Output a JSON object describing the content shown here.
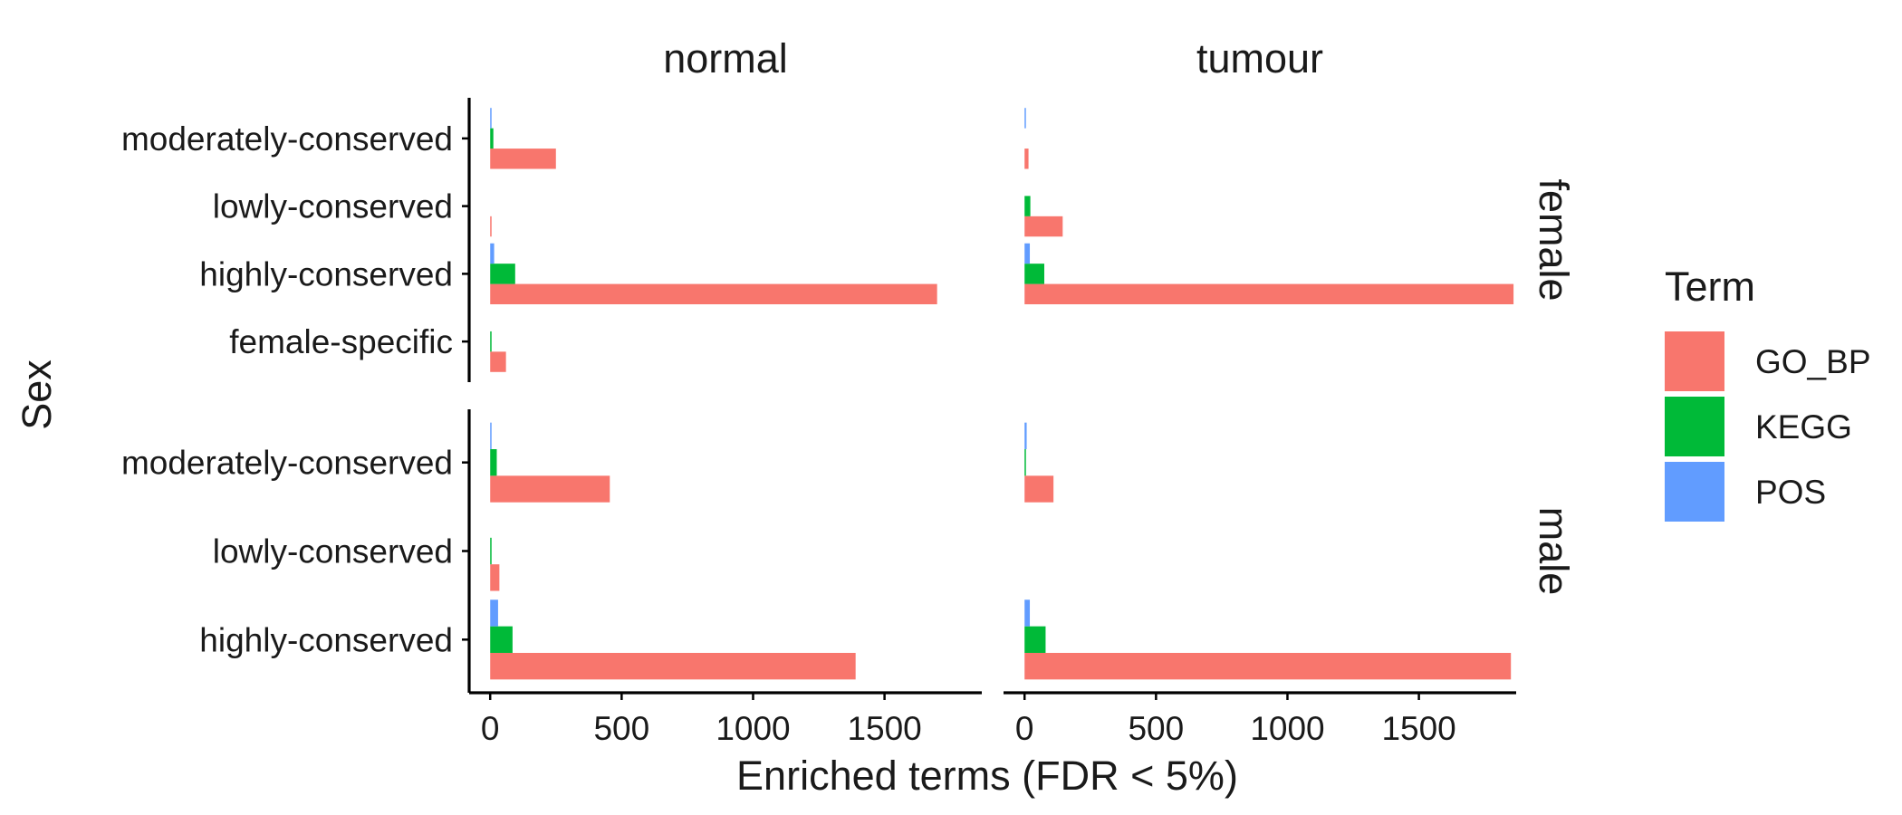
{
  "chart_data": {
    "type": "bar",
    "orientation": "horizontal",
    "grid": false,
    "legend_position": "right",
    "xlabel": "Enriched terms (FDR < 5%)",
    "ylabel": "Sex",
    "xlim": [
      -80,
      1870
    ],
    "xticks": [
      0,
      500,
      1000,
      1500
    ],
    "column_facets": [
      "normal",
      "tumour"
    ],
    "row_facets": [
      {
        "name": "female",
        "categories": [
          "moderately-conserved",
          "lowly-conserved",
          "highly-conserved",
          "female-specific"
        ]
      },
      {
        "name": "male",
        "categories": [
          "moderately-conserved",
          "lowly-conserved",
          "highly-conserved"
        ]
      }
    ],
    "legend": {
      "title": "Term",
      "entries": [
        {
          "name": "GO_BP",
          "color": "#F8766D"
        },
        {
          "name": "KEGG",
          "color": "#00BA38"
        },
        {
          "name": "POS",
          "color": "#619CFF"
        }
      ]
    },
    "series": [
      {
        "name": "GO_BP",
        "color": "#F8766D",
        "values": {
          "normal": {
            "female": {
              "moderately-conserved": 250,
              "lowly-conserved": 2,
              "highly-conserved": 1700,
              "female-specific": 60
            },
            "male": {
              "moderately-conserved": 455,
              "lowly-conserved": 35,
              "highly-conserved": 1390
            }
          },
          "tumour": {
            "female": {
              "moderately-conserved": 15,
              "lowly-conserved": 145,
              "highly-conserved": 1860,
              "female-specific": 0
            },
            "male": {
              "moderately-conserved": 110,
              "lowly-conserved": 0,
              "highly-conserved": 1850
            }
          }
        }
      },
      {
        "name": "KEGG",
        "color": "#00BA38",
        "values": {
          "normal": {
            "female": {
              "moderately-conserved": 12,
              "lowly-conserved": 0,
              "highly-conserved": 95,
              "female-specific": 5
            },
            "male": {
              "moderately-conserved": 25,
              "lowly-conserved": 3,
              "highly-conserved": 85
            }
          },
          "tumour": {
            "female": {
              "moderately-conserved": 0,
              "lowly-conserved": 22,
              "highly-conserved": 75,
              "female-specific": 0
            },
            "male": {
              "moderately-conserved": 5,
              "lowly-conserved": 0,
              "highly-conserved": 80
            }
          }
        }
      },
      {
        "name": "POS",
        "color": "#619CFF",
        "values": {
          "normal": {
            "female": {
              "moderately-conserved": 5,
              "lowly-conserved": 0,
              "highly-conserved": 15,
              "female-specific": 0
            },
            "male": {
              "moderately-conserved": 5,
              "lowly-conserved": 0,
              "highly-conserved": 30
            }
          },
          "tumour": {
            "female": {
              "moderately-conserved": 3,
              "lowly-conserved": 0,
              "highly-conserved": 20,
              "female-specific": 0
            },
            "male": {
              "moderately-conserved": 8,
              "lowly-conserved": 0,
              "highly-conserved": 20
            }
          }
        }
      }
    ]
  }
}
